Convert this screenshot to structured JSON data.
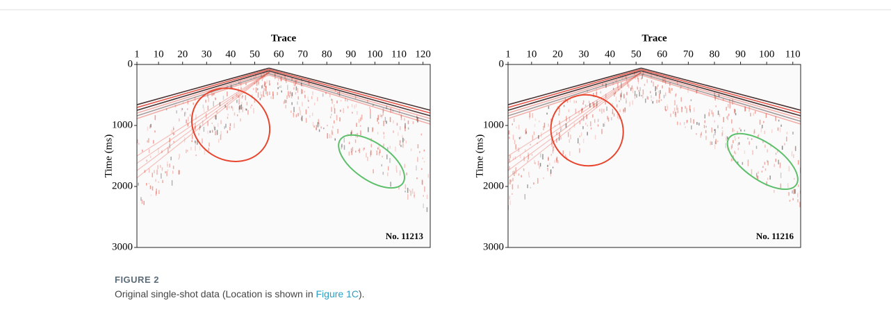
{
  "chart_data": [
    {
      "type": "seismic",
      "xlabel": "Trace",
      "ylabel": "Time (ms)",
      "label": "No. 11213",
      "xlim": [
        1,
        123
      ],
      "xticks": [
        1,
        10,
        20,
        30,
        40,
        50,
        60,
        70,
        80,
        90,
        100,
        110,
        120
      ],
      "ylim": [
        0,
        3000
      ],
      "yticks": [
        0,
        1000,
        2000,
        3000
      ]
    },
    {
      "type": "seismic",
      "xlabel": "Trace",
      "ylabel": "Time (ms)",
      "label": "No. 11216",
      "xlim": [
        1,
        113
      ],
      "xticks": [
        1,
        10,
        20,
        30,
        40,
        50,
        60,
        70,
        80,
        90,
        100,
        110
      ],
      "ylim": [
        0,
        3000
      ],
      "yticks": [
        0,
        1000,
        2000,
        3000
      ]
    }
  ],
  "figure": {
    "label": "FIGURE 2",
    "caption_before": "Original single-shot data (Location is shown in ",
    "link": "Figure 1C",
    "caption_after": ")."
  }
}
